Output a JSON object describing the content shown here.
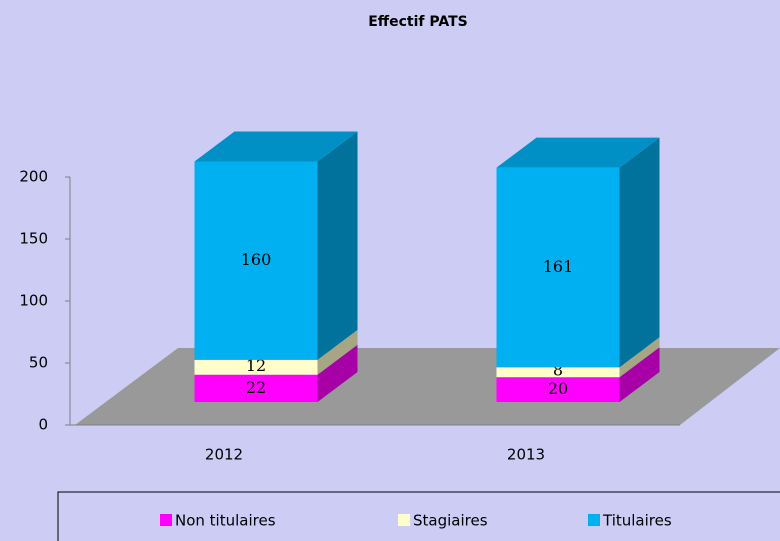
{
  "chart_data": {
    "type": "bar3d_stacked",
    "title": "Effectif PATS",
    "categories": [
      "2012",
      "2013"
    ],
    "series": [
      {
        "name": "Non titulaires",
        "color": "#ff00ff",
        "values": [
          22,
          20
        ]
      },
      {
        "name": "Stagiaires",
        "color": "#ffffcc",
        "values": [
          12,
          8
        ]
      },
      {
        "name": "Titulaires",
        "color": "#00b0f0",
        "values": [
          160,
          161
        ]
      }
    ],
    "ylim": [
      0,
      200
    ],
    "yticks": [
      0,
      50,
      100,
      150,
      200
    ],
    "legend": "bottom",
    "background": "#ccccf5",
    "floor_color": "#999999"
  }
}
